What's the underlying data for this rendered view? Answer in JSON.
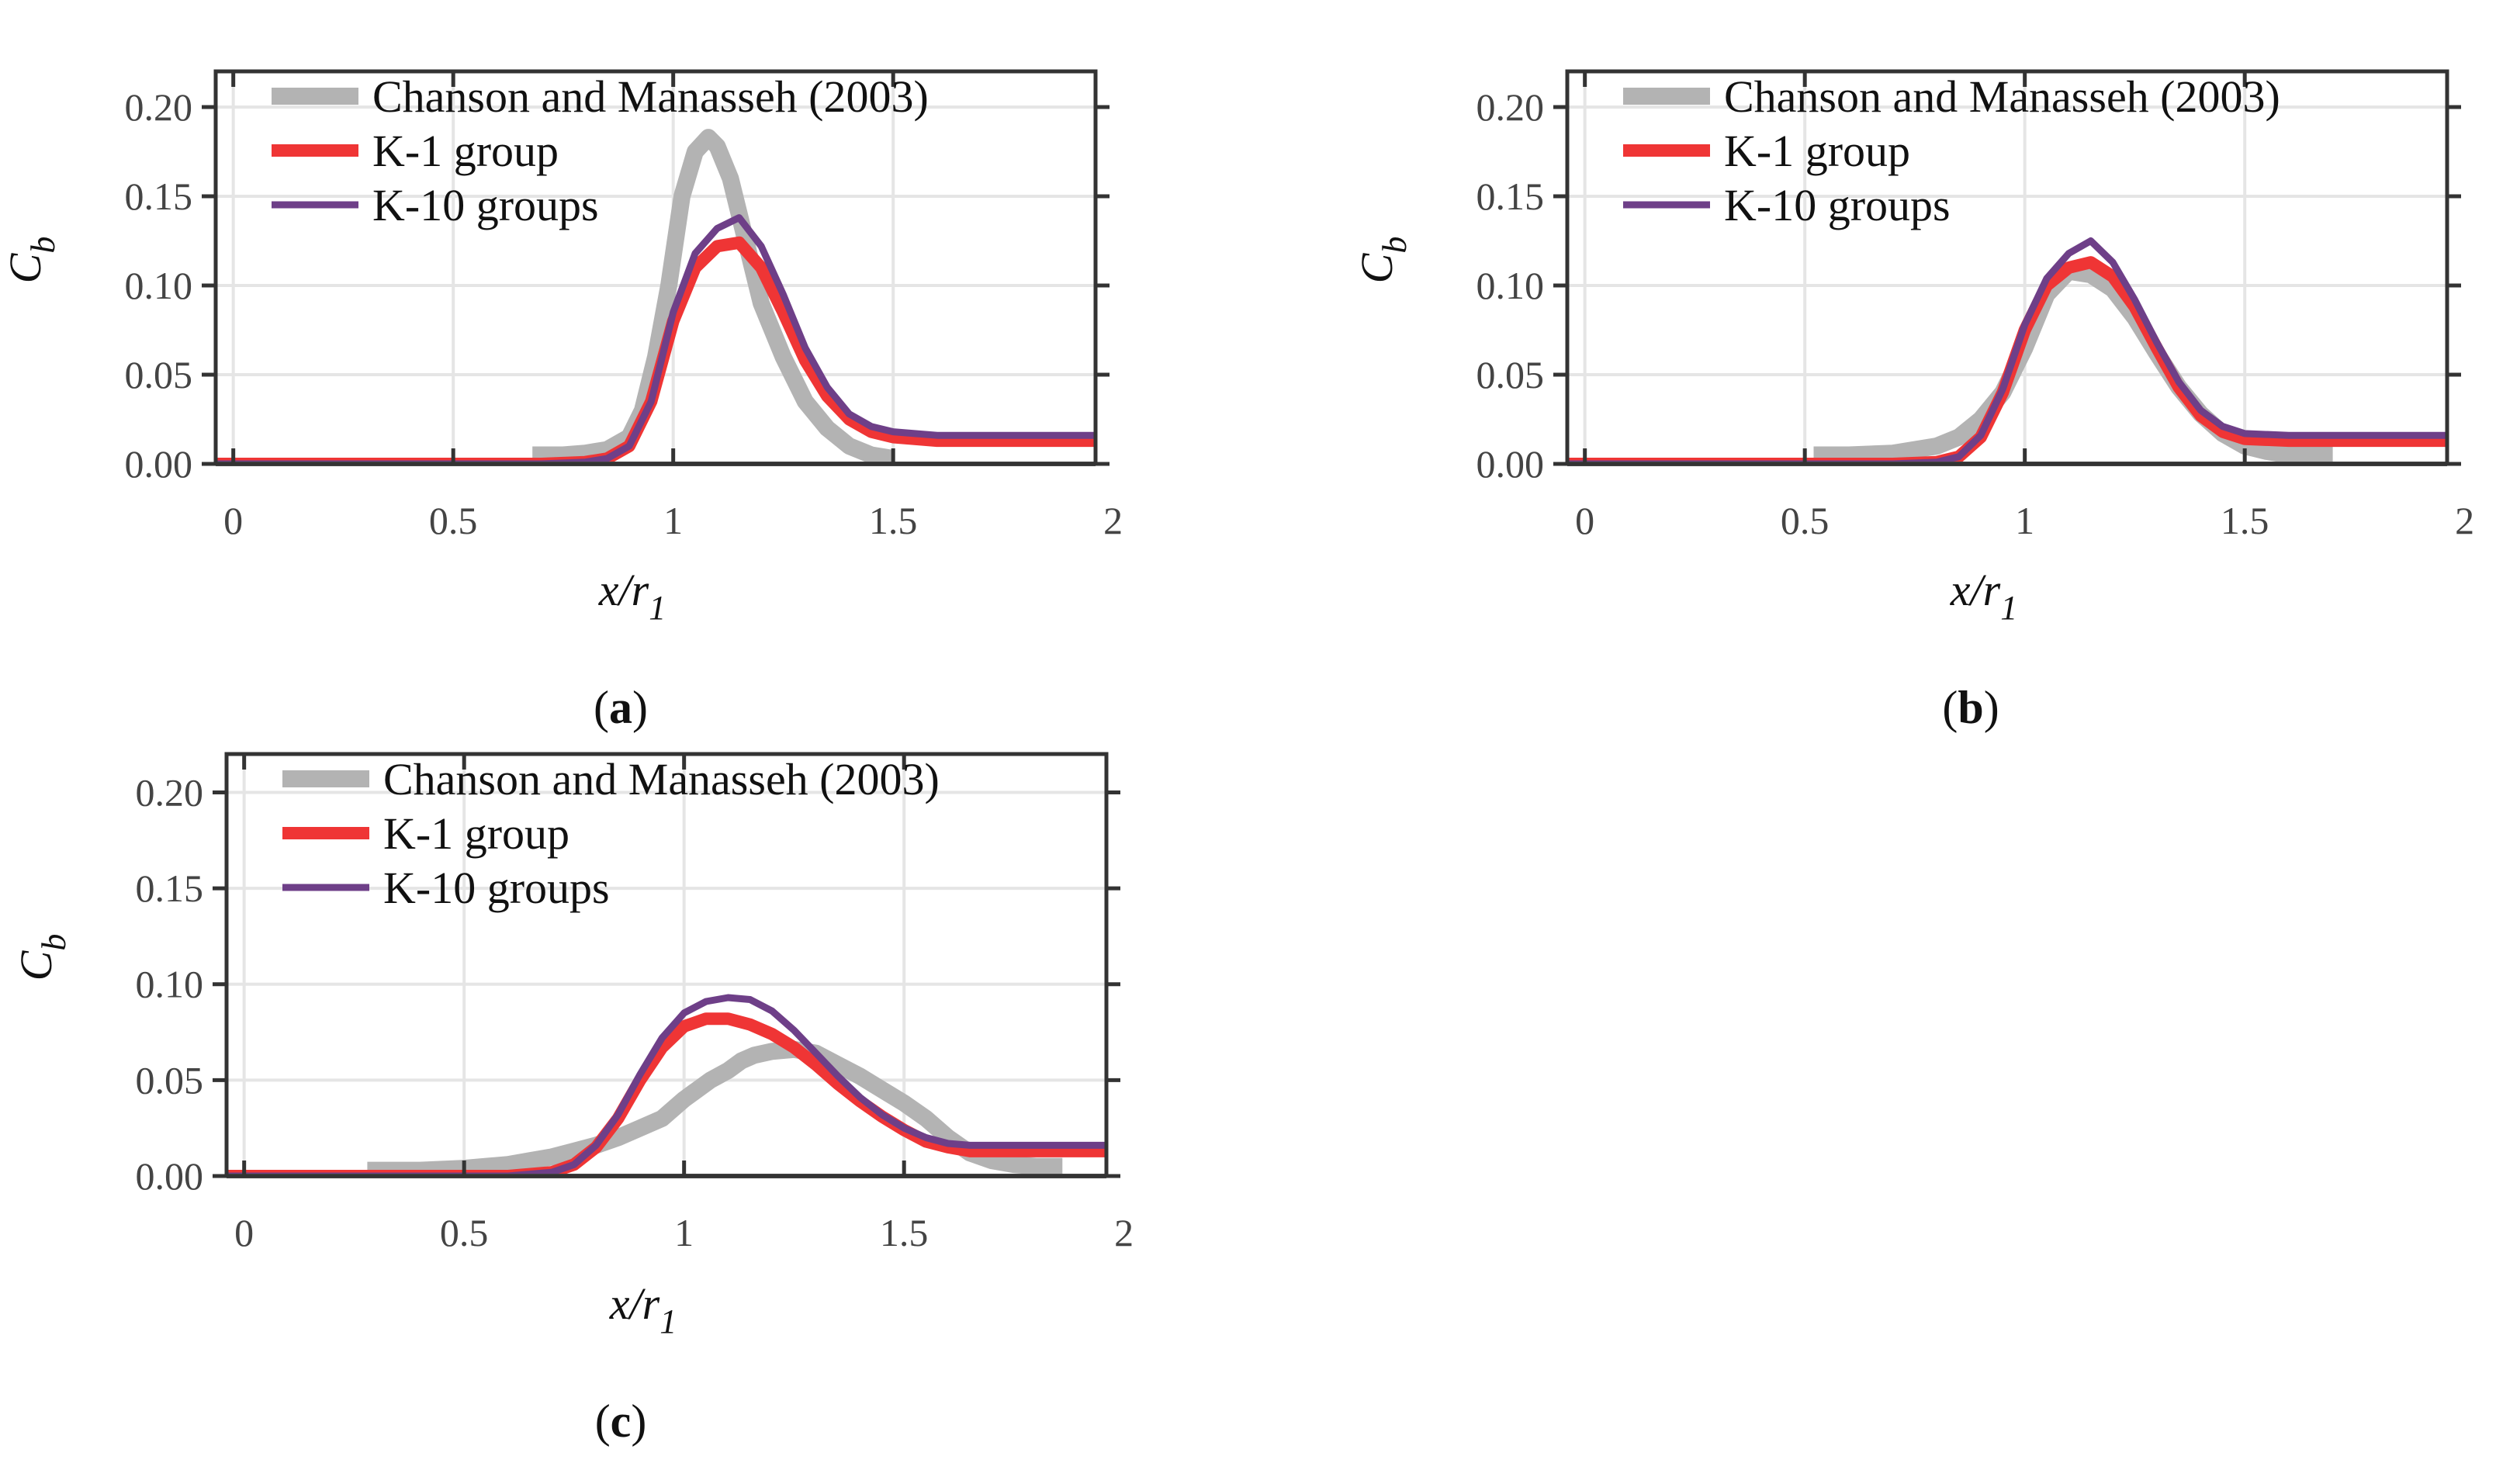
{
  "chart_data": [
    {
      "type": "line",
      "panel": "a",
      "caption": {
        "open": "(",
        "letter": "a",
        "close": ")"
      },
      "xlabel": {
        "main": "x/r",
        "sub": "1"
      },
      "ylabel": {
        "main": "C",
        "sub": "b"
      },
      "xlim": [
        -0.04,
        1.96
      ],
      "ylim": [
        0,
        0.22
      ],
      "xticks": [
        0,
        0.5,
        1,
        1.5,
        2
      ],
      "xtick_labels": [
        "0",
        "0.5",
        "1",
        "1.5",
        "2"
      ],
      "yticks": [
        0,
        0.05,
        0.1,
        0.15,
        0.2
      ],
      "ytick_labels": [
        "0.00",
        "0.05",
        "0.10",
        "0.15",
        "0.20"
      ],
      "grid": true,
      "legend_position": "top-left",
      "series": [
        {
          "name": "Chanson and Manasseh (2003)",
          "color": "#b3b3b3",
          "style": "thick",
          "x": [
            0.68,
            0.75,
            0.8,
            0.85,
            0.9,
            0.93,
            0.96,
            0.99,
            1.02,
            1.05,
            1.08,
            1.1,
            1.13,
            1.16,
            1.2,
            1.25,
            1.3,
            1.35,
            1.4,
            1.45,
            1.5
          ],
          "y": [
            0.005,
            0.005,
            0.006,
            0.008,
            0.015,
            0.03,
            0.06,
            0.1,
            0.15,
            0.175,
            0.183,
            0.178,
            0.16,
            0.13,
            0.09,
            0.06,
            0.035,
            0.02,
            0.01,
            0.005,
            0.003
          ]
        },
        {
          "name": "K-1 group",
          "color": "#ef3535",
          "style": "medium",
          "x": [
            -0.04,
            0.6,
            0.7,
            0.8,
            0.85,
            0.9,
            0.95,
            1.0,
            1.05,
            1.1,
            1.15,
            1.2,
            1.25,
            1.3,
            1.35,
            1.4,
            1.45,
            1.5,
            1.6,
            1.96
          ],
          "y": [
            0.0,
            0.0,
            0.0,
            0.001,
            0.003,
            0.01,
            0.035,
            0.08,
            0.11,
            0.122,
            0.124,
            0.11,
            0.085,
            0.058,
            0.038,
            0.025,
            0.018,
            0.015,
            0.013,
            0.013
          ]
        },
        {
          "name": "K-10 groups",
          "color": "#6e3f88",
          "style": "thin",
          "x": [
            -0.04,
            0.6,
            0.7,
            0.8,
            0.85,
            0.9,
            0.95,
            1.0,
            1.05,
            1.1,
            1.15,
            1.2,
            1.25,
            1.3,
            1.35,
            1.4,
            1.45,
            1.5,
            1.6,
            1.96
          ],
          "y": [
            0.0,
            0.0,
            0.0,
            0.001,
            0.003,
            0.01,
            0.035,
            0.085,
            0.118,
            0.132,
            0.138,
            0.122,
            0.095,
            0.065,
            0.043,
            0.028,
            0.021,
            0.018,
            0.016,
            0.016
          ]
        }
      ]
    },
    {
      "type": "line",
      "panel": "b",
      "caption": {
        "open": "(",
        "letter": "b",
        "close": ")"
      },
      "xlabel": {
        "main": "x/r",
        "sub": "1"
      },
      "ylabel": {
        "main": "C",
        "sub": "b"
      },
      "xlim": [
        -0.04,
        1.96
      ],
      "ylim": [
        0,
        0.22
      ],
      "xticks": [
        0,
        0.5,
        1,
        1.5,
        2
      ],
      "xtick_labels": [
        "0",
        "0.5",
        "1",
        "1.5",
        "2"
      ],
      "yticks": [
        0,
        0.05,
        0.1,
        0.15,
        0.2
      ],
      "ytick_labels": [
        "0.00",
        "0.05",
        "0.10",
        "0.15",
        "0.20"
      ],
      "grid": true,
      "legend_position": "top-left",
      "series": [
        {
          "name": "Chanson and Manasseh (2003)",
          "color": "#b3b3b3",
          "style": "thick",
          "x": [
            0.52,
            0.6,
            0.7,
            0.75,
            0.8,
            0.85,
            0.9,
            0.95,
            1.0,
            1.05,
            1.1,
            1.15,
            1.2,
            1.25,
            1.3,
            1.35,
            1.4,
            1.45,
            1.5,
            1.55,
            1.6,
            1.65,
            1.7
          ],
          "y": [
            0.005,
            0.005,
            0.006,
            0.008,
            0.01,
            0.015,
            0.025,
            0.04,
            0.065,
            0.095,
            0.108,
            0.106,
            0.098,
            0.082,
            0.062,
            0.043,
            0.028,
            0.017,
            0.01,
            0.007,
            0.005,
            0.005,
            0.005
          ]
        },
        {
          "name": "K-1 group",
          "color": "#ef3535",
          "style": "medium",
          "x": [
            -0.04,
            0.7,
            0.8,
            0.85,
            0.9,
            0.95,
            1.0,
            1.05,
            1.1,
            1.15,
            1.2,
            1.25,
            1.3,
            1.35,
            1.4,
            1.45,
            1.5,
            1.6,
            1.96
          ],
          "y": [
            0.0,
            0.0,
            0.001,
            0.004,
            0.015,
            0.04,
            0.075,
            0.1,
            0.11,
            0.113,
            0.105,
            0.088,
            0.065,
            0.043,
            0.027,
            0.018,
            0.014,
            0.013,
            0.013
          ]
        },
        {
          "name": "K-10 groups",
          "color": "#6e3f88",
          "style": "thin",
          "x": [
            -0.04,
            0.7,
            0.8,
            0.85,
            0.9,
            0.95,
            1.0,
            1.05,
            1.1,
            1.15,
            1.2,
            1.25,
            1.3,
            1.35,
            1.4,
            1.45,
            1.5,
            1.6,
            1.96
          ],
          "y": [
            0.0,
            0.0,
            0.001,
            0.004,
            0.016,
            0.042,
            0.078,
            0.104,
            0.118,
            0.125,
            0.113,
            0.092,
            0.068,
            0.046,
            0.03,
            0.021,
            0.017,
            0.016,
            0.016
          ]
        }
      ]
    },
    {
      "type": "line",
      "panel": "c",
      "caption": {
        "open": "(",
        "letter": "c",
        "close": ")"
      },
      "xlabel": {
        "main": "x/r",
        "sub": "1"
      },
      "ylabel": {
        "main": "C",
        "sub": "b"
      },
      "xlim": [
        -0.04,
        1.96
      ],
      "ylim": [
        0,
        0.22
      ],
      "xticks": [
        0,
        0.5,
        1,
        1.5,
        2
      ],
      "xtick_labels": [
        "0",
        "0.5",
        "1",
        "1.5",
        "2"
      ],
      "yticks": [
        0,
        0.05,
        0.1,
        0.15,
        0.2
      ],
      "ytick_labels": [
        "0.00",
        "0.05",
        "0.10",
        "0.15",
        "0.20"
      ],
      "grid": true,
      "legend_position": "top-left",
      "series": [
        {
          "name": "Chanson and Manasseh (2003)",
          "color": "#b3b3b3",
          "style": "thick",
          "x": [
            0.28,
            0.4,
            0.5,
            0.6,
            0.65,
            0.7,
            0.75,
            0.8,
            0.85,
            0.9,
            0.95,
            1.0,
            1.03,
            1.06,
            1.1,
            1.13,
            1.16,
            1.2,
            1.25,
            1.3,
            1.35,
            1.4,
            1.45,
            1.5,
            1.55,
            1.6,
            1.65,
            1.7,
            1.75,
            1.8,
            1.86
          ],
          "y": [
            0.003,
            0.003,
            0.004,
            0.006,
            0.008,
            0.01,
            0.013,
            0.016,
            0.02,
            0.025,
            0.03,
            0.04,
            0.045,
            0.05,
            0.055,
            0.06,
            0.063,
            0.065,
            0.066,
            0.064,
            0.058,
            0.052,
            0.045,
            0.038,
            0.03,
            0.02,
            0.012,
            0.008,
            0.006,
            0.005,
            0.005
          ]
        },
        {
          "name": "K-1 group",
          "color": "#ef3535",
          "style": "medium",
          "x": [
            -0.04,
            0.6,
            0.7,
            0.75,
            0.8,
            0.85,
            0.9,
            0.95,
            1.0,
            1.05,
            1.1,
            1.15,
            1.2,
            1.25,
            1.3,
            1.35,
            1.4,
            1.45,
            1.5,
            1.55,
            1.6,
            1.65,
            1.7,
            1.8,
            1.96
          ],
          "y": [
            0.0,
            0.0,
            0.002,
            0.006,
            0.015,
            0.03,
            0.05,
            0.067,
            0.078,
            0.082,
            0.082,
            0.079,
            0.074,
            0.067,
            0.058,
            0.048,
            0.039,
            0.031,
            0.024,
            0.018,
            0.015,
            0.013,
            0.013,
            0.013,
            0.013
          ]
        },
        {
          "name": "K-10 groups",
          "color": "#6e3f88",
          "style": "thin",
          "x": [
            -0.04,
            0.6,
            0.7,
            0.75,
            0.8,
            0.85,
            0.9,
            0.95,
            1.0,
            1.05,
            1.1,
            1.15,
            1.2,
            1.25,
            1.3,
            1.35,
            1.4,
            1.45,
            1.5,
            1.55,
            1.6,
            1.65,
            1.7,
            1.8,
            1.96
          ],
          "y": [
            0.0,
            0.0,
            0.002,
            0.006,
            0.016,
            0.032,
            0.053,
            0.072,
            0.085,
            0.091,
            0.093,
            0.092,
            0.086,
            0.076,
            0.064,
            0.052,
            0.041,
            0.032,
            0.025,
            0.02,
            0.017,
            0.016,
            0.016,
            0.016,
            0.016
          ]
        }
      ]
    }
  ]
}
